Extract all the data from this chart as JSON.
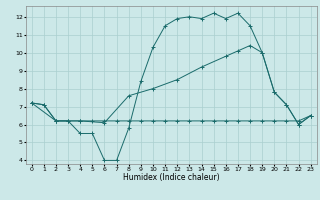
{
  "bg_color": "#cce8e8",
  "grid_color": "#aacfcf",
  "line_color": "#1a6b6b",
  "xlabel": "Humidex (Indice chaleur)",
  "xlim": [
    -0.5,
    23.5
  ],
  "ylim": [
    3.8,
    12.6
  ],
  "xticks": [
    0,
    1,
    2,
    3,
    4,
    5,
    6,
    7,
    8,
    9,
    10,
    11,
    12,
    13,
    14,
    15,
    16,
    17,
    18,
    19,
    20,
    21,
    22,
    23
  ],
  "yticks": [
    4,
    5,
    6,
    7,
    8,
    9,
    10,
    11,
    12
  ],
  "line1_x": [
    0,
    1,
    2,
    3,
    4,
    5,
    6,
    7,
    8,
    9,
    10,
    11,
    12,
    13,
    14,
    15,
    16,
    17,
    18,
    19,
    20,
    21,
    22,
    23
  ],
  "line1_y": [
    7.2,
    7.1,
    6.2,
    6.2,
    5.5,
    5.5,
    4.0,
    4.0,
    5.8,
    8.4,
    10.3,
    11.5,
    11.9,
    12.0,
    11.9,
    12.2,
    11.9,
    12.2,
    11.5,
    10.0,
    7.8,
    7.1,
    6.0,
    6.5
  ],
  "line2_x": [
    0,
    1,
    2,
    3,
    4,
    5,
    6,
    7,
    8,
    9,
    10,
    11,
    12,
    13,
    14,
    15,
    16,
    17,
    18,
    19,
    20,
    21,
    22,
    23
  ],
  "line2_y": [
    7.2,
    7.1,
    6.2,
    6.2,
    6.2,
    6.2,
    6.2,
    6.2,
    6.2,
    6.2,
    6.2,
    6.2,
    6.2,
    6.2,
    6.2,
    6.2,
    6.2,
    6.2,
    6.2,
    6.2,
    6.2,
    6.2,
    6.2,
    6.5
  ],
  "line3_x": [
    0,
    2,
    4,
    6,
    8,
    10,
    12,
    14,
    16,
    17,
    18,
    19,
    20,
    21,
    22,
    23
  ],
  "line3_y": [
    7.2,
    6.2,
    6.2,
    6.1,
    7.6,
    8.0,
    8.5,
    9.2,
    9.8,
    10.1,
    10.4,
    10.0,
    7.8,
    7.1,
    6.0,
    6.5
  ]
}
